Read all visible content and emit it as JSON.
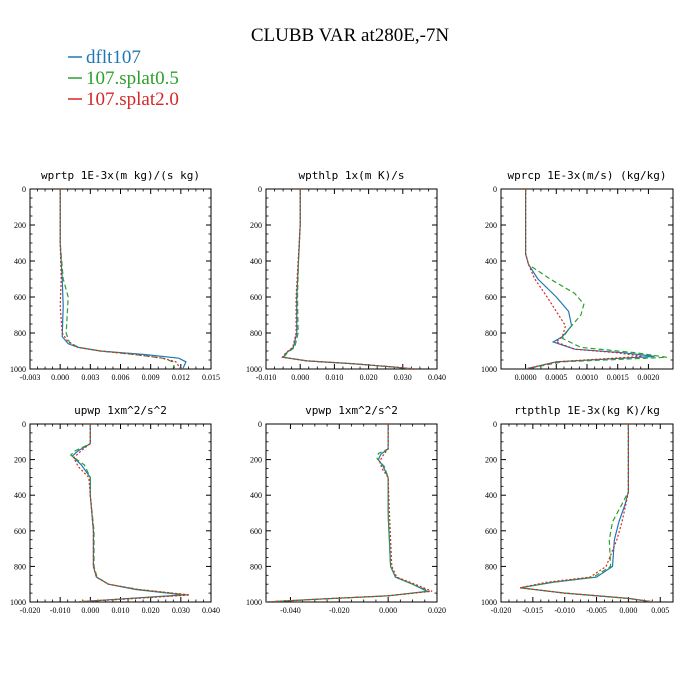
{
  "figure": {
    "title": "CLUBB VAR at280E,-7N"
  },
  "colors": {
    "dflt107": "#1f77b4",
    "107.splat0.5": "#2ca02c",
    "107.splat2.0": "#d62728"
  },
  "legend": [
    {
      "name": "dflt107",
      "color": "#1f77b4",
      "dash": "solid"
    },
    {
      "name": "107.splat0.5",
      "color": "#2ca02c",
      "dash": "dashed"
    },
    {
      "name": "107.splat2.0",
      "color": "#d62728",
      "dash": "dotted"
    }
  ],
  "chart_data": [
    {
      "type": "line",
      "title": "wprtp  1E-3x(m kg)/(s kg)",
      "xlim": [
        -0.003,
        0.015
      ],
      "ylim": [
        1000,
        0
      ],
      "xticks": [
        -0.003,
        0.0,
        0.003,
        0.006,
        0.009,
        0.012,
        0.015
      ],
      "xticklabels": [
        "-0.003",
        "0.000",
        "0.003",
        "0.006",
        "0.009",
        "0.012",
        "0.015"
      ],
      "yticks": [
        0,
        200,
        400,
        600,
        800,
        1000
      ],
      "series": [
        {
          "name": "dflt107",
          "x": [
            0.0,
            0.0,
            0.0002,
            0.0003,
            0.0002,
            0.0008,
            0.0018,
            0.004,
            0.0085,
            0.0118,
            0.0125,
            0.0122
          ],
          "y": [
            0,
            300,
            500,
            650,
            820,
            860,
            880,
            900,
            920,
            940,
            960,
            1000
          ]
        },
        {
          "name": "107.splat0.5",
          "x": [
            0.0,
            0.0,
            0.0003,
            0.0008,
            0.0006,
            0.0009,
            0.0018,
            0.004,
            0.0075,
            0.0102,
            0.0112,
            0.0114
          ],
          "y": [
            0,
            300,
            500,
            600,
            800,
            850,
            880,
            900,
            920,
            940,
            960,
            1000
          ]
        },
        {
          "name": "107.splat2.0",
          "x": [
            0.0,
            0.0,
            0.0001,
            0.0,
            0.0002,
            0.0008,
            0.0018,
            0.004,
            0.0075,
            0.0102,
            0.0115,
            0.012
          ],
          "y": [
            0,
            300,
            500,
            650,
            800,
            850,
            880,
            900,
            920,
            940,
            960,
            1000
          ]
        }
      ]
    },
    {
      "type": "line",
      "title": "wpthlp  1x(m K)/s",
      "xlim": [
        -0.01,
        0.04
      ],
      "ylim": [
        1000,
        0
      ],
      "xticks": [
        -0.01,
        0.0,
        0.01,
        0.02,
        0.03,
        0.04
      ],
      "xticklabels": [
        "-0.010",
        "0.000",
        "0.010",
        "0.020",
        "0.030",
        "0.040"
      ],
      "yticks": [
        0,
        200,
        400,
        600,
        800,
        1000
      ],
      "series": [
        {
          "name": "dflt107",
          "x": [
            0.0,
            0.0,
            -0.0005,
            -0.001,
            -0.001,
            -0.002,
            -0.004,
            -0.005,
            0.002,
            0.015,
            0.028,
            0.033
          ],
          "y": [
            0,
            200,
            400,
            600,
            800,
            880,
            910,
            935,
            955,
            970,
            990,
            1000
          ]
        },
        {
          "name": "107.splat0.5",
          "x": [
            0.0,
            0.0,
            -0.0005,
            -0.0008,
            -0.0006,
            -0.0016,
            -0.0038,
            -0.0048,
            0.002,
            0.015,
            0.028,
            0.033
          ],
          "y": [
            0,
            200,
            400,
            600,
            800,
            880,
            910,
            935,
            955,
            970,
            990,
            1000
          ]
        },
        {
          "name": "107.splat2.0",
          "x": [
            0.0,
            0.0,
            -0.0006,
            -0.0012,
            -0.0012,
            -0.0022,
            -0.0042,
            -0.0052,
            0.002,
            0.015,
            0.028,
            0.034
          ],
          "y": [
            0,
            200,
            400,
            600,
            800,
            880,
            910,
            935,
            955,
            970,
            990,
            1000
          ]
        }
      ]
    },
    {
      "type": "line",
      "title": "wprcp  1E-3x(m/s) (kg/kg)",
      "xlim": [
        -0.0004,
        0.0024
      ],
      "ylim": [
        1000,
        0
      ],
      "xticks": [
        0.0,
        0.0005,
        0.001,
        0.0015,
        0.002
      ],
      "xticklabels": [
        "0.0000",
        "0.0005",
        "0.0010",
        "0.0015",
        "0.0020"
      ],
      "yticks": [
        0,
        200,
        400,
        600,
        800,
        1000
      ],
      "series": [
        {
          "name": "dflt107",
          "x": [
            0.0,
            0.0,
            5e-05,
            0.0002,
            0.0005,
            0.0007,
            0.00075,
            0.0006,
            0.00045,
            0.0008,
            0.0016,
            0.0021,
            0.0005,
            0.0
          ],
          "y": [
            0,
            360,
            420,
            500,
            600,
            680,
            760,
            820,
            850,
            890,
            910,
            930,
            960,
            1000
          ]
        },
        {
          "name": "107.splat0.5",
          "x": [
            0.0,
            0.0,
            5e-05,
            0.0004,
            0.0008,
            0.00095,
            0.0009,
            0.0007,
            0.0006,
            0.0009,
            0.0018,
            0.0023,
            0.0006,
            0.0
          ],
          "y": [
            0,
            360,
            420,
            500,
            580,
            640,
            700,
            780,
            830,
            880,
            910,
            935,
            960,
            1000
          ]
        },
        {
          "name": "107.splat2.0",
          "x": [
            0.0,
            0.0,
            5e-05,
            0.00015,
            0.00035,
            0.0005,
            0.00065,
            0.0006,
            0.0005,
            0.0008,
            0.0015,
            0.0019,
            0.0005,
            0.0
          ],
          "y": [
            0,
            360,
            420,
            500,
            600,
            680,
            760,
            820,
            850,
            890,
            910,
            930,
            960,
            1000
          ]
        }
      ]
    },
    {
      "type": "line",
      "title": "upwp  1xm^2/s^2",
      "xlim": [
        -0.02,
        0.04
      ],
      "ylim": [
        1000,
        0
      ],
      "xticks": [
        -0.02,
        -0.01,
        0.0,
        0.01,
        0.02,
        0.03,
        0.04
      ],
      "xticklabels": [
        "-0.020",
        "-0.010",
        "0.000",
        "0.010",
        "0.020",
        "0.030",
        "0.040"
      ],
      "yticks": [
        0,
        200,
        400,
        600,
        800,
        1000
      ],
      "series": [
        {
          "name": "dflt107",
          "x": [
            0.0,
            0.0,
            -0.004,
            -0.006,
            -0.003,
            0.0,
            0.0,
            0.001,
            0.001,
            0.002,
            0.006,
            0.015,
            0.031,
            0.004,
            -0.005
          ],
          "y": [
            0,
            110,
            150,
            180,
            230,
            300,
            400,
            600,
            800,
            860,
            900,
            930,
            960,
            990,
            1000
          ]
        },
        {
          "name": "107.splat0.5",
          "x": [
            0.0,
            0.0,
            -0.005,
            -0.0065,
            -0.002,
            0.0,
            0.0,
            0.0012,
            0.0012,
            0.0022,
            0.006,
            0.016,
            0.032,
            0.005,
            -0.005
          ],
          "y": [
            0,
            110,
            150,
            175,
            230,
            300,
            400,
            600,
            800,
            860,
            900,
            930,
            960,
            990,
            1000
          ]
        },
        {
          "name": "107.splat2.0",
          "x": [
            0.0,
            0.0,
            -0.003,
            -0.0055,
            -0.004,
            -0.0005,
            0.0,
            0.001,
            0.001,
            0.002,
            0.006,
            0.016,
            0.033,
            0.005,
            -0.005
          ],
          "y": [
            0,
            110,
            150,
            190,
            240,
            300,
            400,
            600,
            800,
            860,
            900,
            930,
            960,
            990,
            1000
          ]
        }
      ]
    },
    {
      "type": "line",
      "title": "vpwp  1xm^2/s^2",
      "xlim": [
        -0.05,
        0.02
      ],
      "ylim": [
        1000,
        0
      ],
      "xticks": [
        -0.04,
        -0.02,
        0.0,
        0.02
      ],
      "xticklabels": [
        "-0.040",
        "-0.020",
        "0.000",
        "0.020"
      ],
      "yticks": [
        0,
        200,
        400,
        600,
        800,
        1000
      ],
      "series": [
        {
          "name": "dflt107",
          "x": [
            0.0,
            0.0,
            -0.003,
            -0.004,
            -0.002,
            0.0,
            0.0,
            0.001,
            0.003,
            0.01,
            0.016,
            0.0,
            -0.03,
            -0.05
          ],
          "y": [
            0,
            140,
            170,
            200,
            240,
            300,
            500,
            800,
            860,
            900,
            940,
            965,
            985,
            1000
          ]
        },
        {
          "name": "107.splat0.5",
          "x": [
            0.0,
            0.0,
            -0.004,
            -0.0045,
            -0.0015,
            0.0,
            0.0,
            0.001,
            0.003,
            0.01,
            0.017,
            0.0,
            -0.03,
            -0.05
          ],
          "y": [
            0,
            140,
            165,
            195,
            240,
            300,
            500,
            800,
            860,
            900,
            940,
            965,
            985,
            1000
          ]
        },
        {
          "name": "107.splat2.0",
          "x": [
            0.0,
            0.0,
            -0.002,
            -0.0035,
            -0.0025,
            0.0,
            0.0005,
            0.0015,
            0.0035,
            0.011,
            0.018,
            0.0,
            -0.03,
            -0.05
          ],
          "y": [
            0,
            140,
            175,
            210,
            250,
            300,
            500,
            800,
            860,
            900,
            940,
            965,
            985,
            1000
          ]
        }
      ]
    },
    {
      "type": "line",
      "title": "rtpthlp  1E-3x(kg K)/kg",
      "xlim": [
        -0.02,
        0.007
      ],
      "ylim": [
        1000,
        0
      ],
      "xticks": [
        -0.02,
        -0.015,
        -0.01,
        -0.005,
        0.0,
        0.005
      ],
      "xticklabels": [
        "-0.020",
        "-0.015",
        "-0.010",
        "-0.005",
        "0.000",
        "0.005"
      ],
      "yticks": [
        0,
        200,
        400,
        600,
        800,
        1000
      ],
      "series": [
        {
          "name": "dflt107",
          "x": [
            0.0,
            0.0,
            -0.0005,
            -0.0015,
            -0.0022,
            -0.0025,
            -0.005,
            -0.012,
            -0.017,
            -0.01,
            0.0,
            0.004
          ],
          "y": [
            0,
            380,
            450,
            550,
            650,
            800,
            860,
            890,
            920,
            950,
            980,
            1000
          ]
        },
        {
          "name": "107.splat0.5",
          "x": [
            0.0,
            0.0,
            -0.001,
            -0.0025,
            -0.003,
            -0.0028,
            -0.0055,
            -0.012,
            -0.017,
            -0.01,
            0.0,
            0.004
          ],
          "y": [
            0,
            380,
            450,
            550,
            650,
            800,
            860,
            890,
            920,
            950,
            980,
            1000
          ]
        },
        {
          "name": "107.splat2.0",
          "x": [
            0.0,
            0.0,
            -0.0004,
            -0.001,
            -0.0018,
            -0.0035,
            -0.006,
            -0.013,
            -0.017,
            -0.01,
            0.0,
            0.004
          ],
          "y": [
            0,
            380,
            450,
            550,
            650,
            800,
            860,
            890,
            920,
            950,
            980,
            1000
          ]
        }
      ]
    }
  ]
}
